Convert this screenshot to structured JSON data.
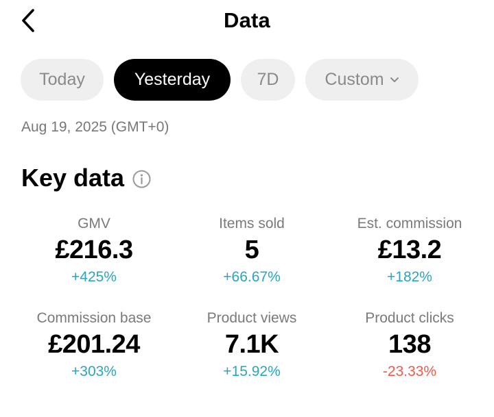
{
  "header": {
    "title": "Data",
    "back_icon": "chevron-left-icon"
  },
  "range_tabs": {
    "today": "Today",
    "yesterday": "Yesterday",
    "seven_days": "7D",
    "custom": "Custom",
    "selected": "Yesterday"
  },
  "date_line": "Aug 19, 2025 (GMT+0)",
  "key_data": {
    "title": "Key data",
    "info_icon": "info-icon",
    "metrics": [
      {
        "label": "GMV",
        "value": "£216.3",
        "change": "+425%",
        "trend": "up"
      },
      {
        "label": "Items sold",
        "value": "5",
        "change": "+66.67%",
        "trend": "up"
      },
      {
        "label": "Est. commission",
        "value": "£13.2",
        "change": "+182%",
        "trend": "up"
      },
      {
        "label": "Commission base",
        "value": "£201.24",
        "change": "+303%",
        "trend": "up"
      },
      {
        "label": "Product views",
        "value": "7.1K",
        "change": "+15.92%",
        "trend": "up"
      },
      {
        "label": "Product clicks",
        "value": "138",
        "change": "-23.33%",
        "trend": "down"
      }
    ]
  },
  "colors": {
    "positive": "#2aa4c0",
    "negative": "#ef5a4a",
    "active_pill": "#000000",
    "inactive_pill": "#efefef"
  }
}
